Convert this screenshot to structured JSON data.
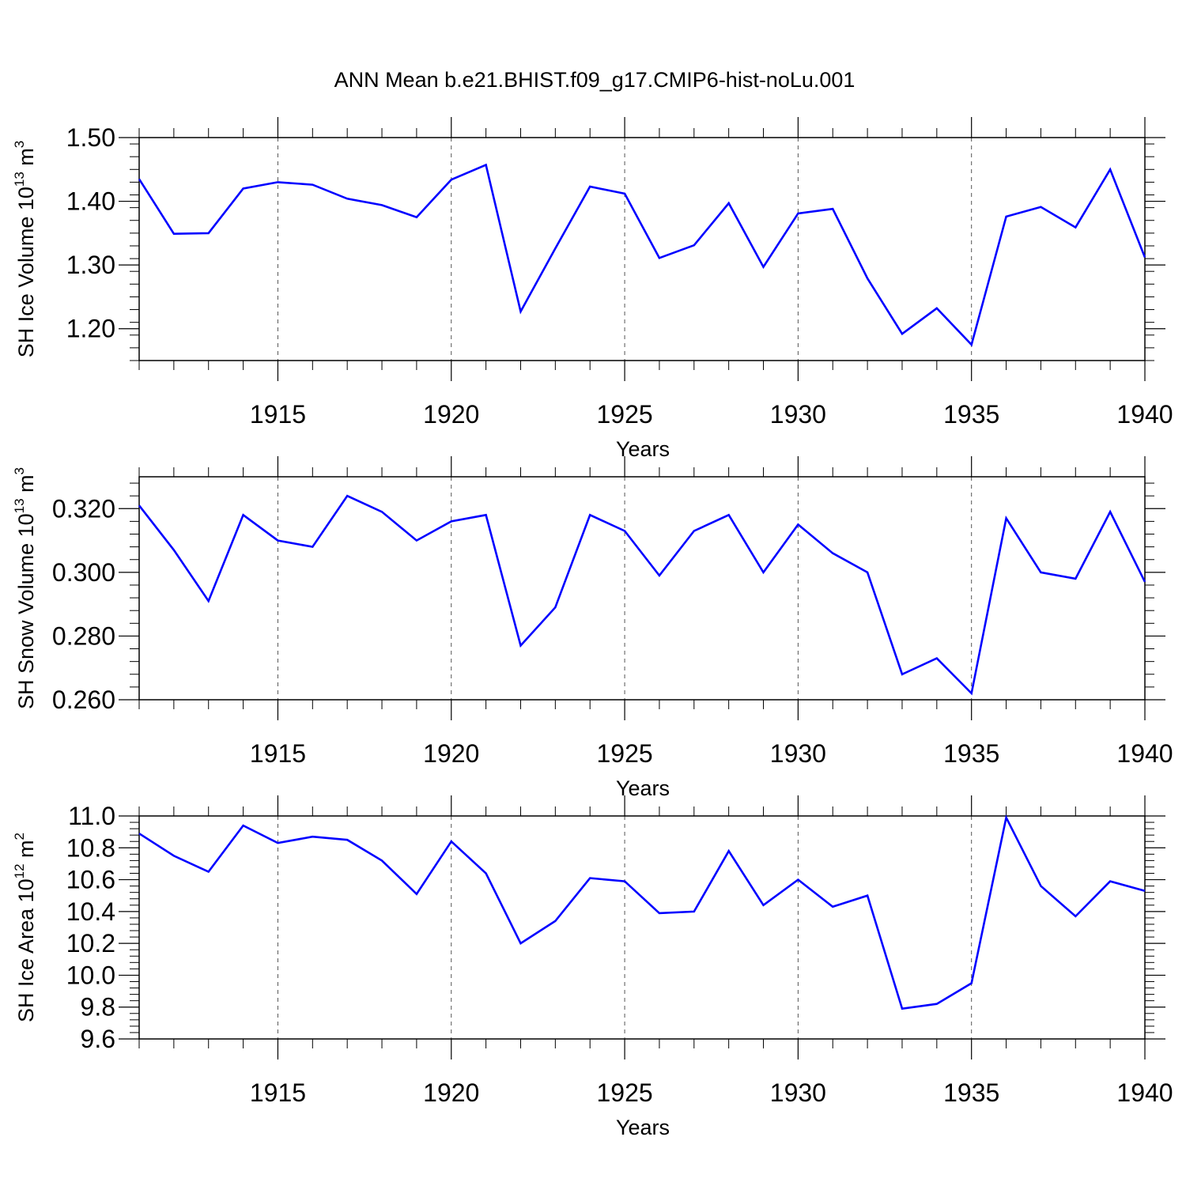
{
  "title": "ANN Mean b.e21.BHIST.f09_g17.CMIP6-hist-noLu.001",
  "colors": {
    "series": "#0000ff",
    "axes": "#000000",
    "grid": "#555555"
  },
  "chart_data": [
    {
      "type": "line",
      "ylabel": "SH Ice Volume 10",
      "ylabel_exp": "13",
      "ylabel_unit": " m",
      "ylabel_unit_exp": "3",
      "xlabel": "Years",
      "xlim": [
        1911,
        1940
      ],
      "ylim": [
        1.15,
        1.5
      ],
      "xticks": [
        1915,
        1920,
        1925,
        1930,
        1935,
        1940
      ],
      "yticks": [
        "1.20",
        "1.30",
        "1.40",
        "1.50"
      ],
      "grid": "vertical dashed at major x ticks",
      "series": [
        {
          "x": [
            1911,
            1912,
            1913,
            1914,
            1915,
            1916,
            1917,
            1918,
            1919,
            1920,
            1921,
            1922,
            1923,
            1924,
            1925,
            1926,
            1927,
            1928,
            1929,
            1930,
            1931,
            1932,
            1933,
            1934,
            1935,
            1936,
            1937,
            1938,
            1939,
            1940
          ],
          "values": [
            1.435,
            1.349,
            1.35,
            1.42,
            1.43,
            1.426,
            1.404,
            1.394,
            1.375,
            1.434,
            1.457,
            1.227,
            1.326,
            1.423,
            1.412,
            1.311,
            1.331,
            1.397,
            1.297,
            1.381,
            1.388,
            1.279,
            1.192,
            1.232,
            1.175,
            1.376,
            1.391,
            1.359,
            1.45,
            1.312
          ]
        }
      ]
    },
    {
      "type": "line",
      "ylabel": "SH Snow Volume 10",
      "ylabel_exp": "13",
      "ylabel_unit": " m",
      "ylabel_unit_exp": "3",
      "xlabel": "Years",
      "xlim": [
        1911,
        1940
      ],
      "ylim": [
        0.26,
        0.33
      ],
      "xticks": [
        1915,
        1920,
        1925,
        1930,
        1935,
        1940
      ],
      "yticks": [
        "0.260",
        "0.280",
        "0.300",
        "0.320"
      ],
      "grid": "vertical dashed at major x ticks",
      "series": [
        {
          "x": [
            1911,
            1912,
            1913,
            1914,
            1915,
            1916,
            1917,
            1918,
            1919,
            1920,
            1921,
            1922,
            1923,
            1924,
            1925,
            1926,
            1927,
            1928,
            1929,
            1930,
            1931,
            1932,
            1933,
            1934,
            1935,
            1936,
            1937,
            1938,
            1939,
            1940
          ],
          "values": [
            0.321,
            0.307,
            0.291,
            0.318,
            0.31,
            0.308,
            0.324,
            0.319,
            0.31,
            0.316,
            0.318,
            0.277,
            0.289,
            0.318,
            0.313,
            0.299,
            0.313,
            0.318,
            0.3,
            0.315,
            0.306,
            0.3,
            0.268,
            0.273,
            0.262,
            0.317,
            0.3,
            0.298,
            0.319,
            0.297
          ]
        }
      ]
    },
    {
      "type": "line",
      "ylabel": "SH Ice Area 10",
      "ylabel_exp": "12",
      "ylabel_unit": " m",
      "ylabel_unit_exp": "2",
      "xlabel": "Years",
      "xlim": [
        1911,
        1940
      ],
      "ylim": [
        9.6,
        11.0
      ],
      "xticks": [
        1915,
        1920,
        1925,
        1930,
        1935,
        1940
      ],
      "yticks": [
        "9.6",
        "9.8",
        "10.0",
        "10.2",
        "10.4",
        "10.6",
        "10.8",
        "11.0"
      ],
      "grid": "vertical dashed at major x ticks",
      "series": [
        {
          "x": [
            1911,
            1912,
            1913,
            1914,
            1915,
            1916,
            1917,
            1918,
            1919,
            1920,
            1921,
            1922,
            1923,
            1924,
            1925,
            1926,
            1927,
            1928,
            1929,
            1930,
            1931,
            1932,
            1933,
            1934,
            1935,
            1936,
            1937,
            1938,
            1939,
            1940
          ],
          "values": [
            10.89,
            10.75,
            10.65,
            10.94,
            10.83,
            10.87,
            10.85,
            10.72,
            10.51,
            10.84,
            10.64,
            10.2,
            10.34,
            10.61,
            10.59,
            10.39,
            10.4,
            10.78,
            10.44,
            10.6,
            10.43,
            10.5,
            9.79,
            9.82,
            9.95,
            10.99,
            10.56,
            10.37,
            10.59,
            10.53
          ]
        }
      ]
    }
  ]
}
